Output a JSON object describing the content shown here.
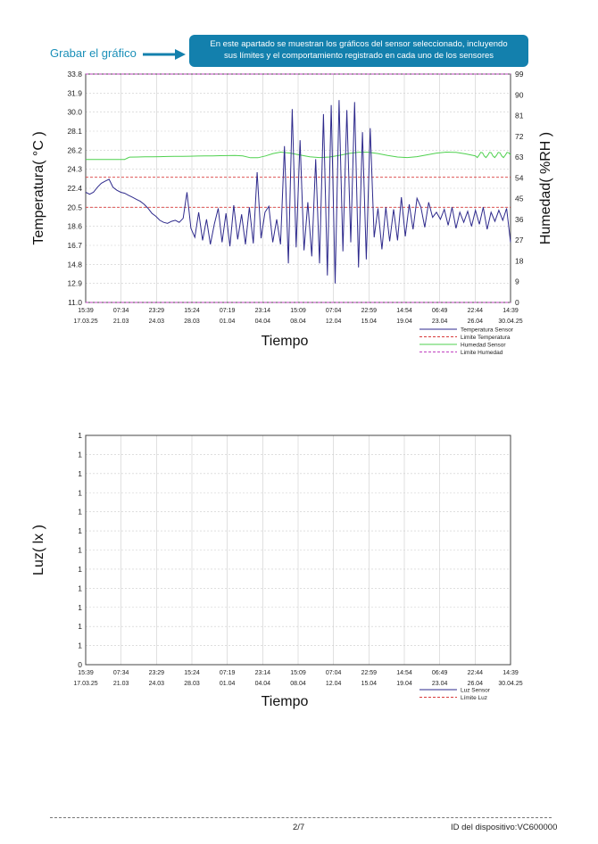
{
  "header": {
    "grabar_label": "Grabar el gráfico",
    "callout_line1": "En este apartado se muestran los gráficos del sensor seleccionado, incluyendo",
    "callout_line2": "sus límites y el comportamiento registrado en cada uno de los sensores"
  },
  "colors": {
    "accent": "#1380ad",
    "temperature_series": "#2e2a8c",
    "humidity_series": "#4fd14f",
    "temperature_limit": "#d93b3b",
    "humidity_limit": "#c040c0",
    "grid": "#cccccc"
  },
  "x_ticks": [
    {
      "time": "15:39",
      "date": "17.03.25"
    },
    {
      "time": "07:34",
      "date": "21.03"
    },
    {
      "time": "23:29",
      "date": "24.03"
    },
    {
      "time": "15:24",
      "date": "28.03"
    },
    {
      "time": "07:19",
      "date": "01.04"
    },
    {
      "time": "23:14",
      "date": "04.04"
    },
    {
      "time": "15:09",
      "date": "08.04"
    },
    {
      "time": "07:04",
      "date": "12.04"
    },
    {
      "time": "22:59",
      "date": "15.04"
    },
    {
      "time": "14:54",
      "date": "19.04"
    },
    {
      "time": "06:49",
      "date": "23.04"
    },
    {
      "time": "22:44",
      "date": "26.04"
    },
    {
      "time": "14:39",
      "date": "30.04.25"
    }
  ],
  "chart_data": [
    {
      "type": "line",
      "xlabel": "Tiempo",
      "ylabel": "Temperatura( °C )",
      "y2label": "Humedad( %RH )",
      "ylim": [
        11.0,
        33.8
      ],
      "y_ticks": [
        "33.8",
        "31.9",
        "30.0",
        "28.1",
        "26.2",
        "24.3",
        "22.4",
        "20.5",
        "18.6",
        "16.7",
        "14.8",
        "12.9",
        "11.0"
      ],
      "y2lim": [
        0,
        99
      ],
      "y2_ticks": [
        "99",
        "90",
        "81",
        "72",
        "63",
        "54",
        "45",
        "36",
        "27",
        "18",
        "9",
        "0"
      ],
      "grid": true,
      "legend_position": "bottom-right",
      "legend": [
        "Temperatura Sensor",
        "Limite Temperatura",
        "Humedad Sensor",
        "Limite Humedad"
      ],
      "limits": {
        "temperature": [
          20.5,
          23.5
        ],
        "humidity": [
          0,
          99
        ]
      },
      "series": [
        {
          "name": "Temperatura Sensor",
          "axis": "left",
          "x": [
            0,
            0.4,
            0.8,
            1.2,
            1.6,
            2.0,
            2.4,
            2.8,
            3.2,
            3.6,
            4.0,
            4.4,
            4.8,
            5.2,
            5.6,
            6.0,
            6.4,
            6.8,
            7.2,
            7.6,
            8.0,
            8.4,
            8.8,
            9.2,
            9.6,
            10.0,
            10.4,
            10.8,
            11.2,
            11.6,
            12.0,
            12.4,
            12.8,
            13.2,
            13.6,
            14.0,
            14.4,
            14.8,
            15.2,
            15.6,
            16.0,
            16.4,
            16.8,
            17.2,
            17.6,
            18.0,
            18.4,
            18.8,
            19.2,
            19.6,
            20.0,
            20.4,
            20.8,
            21.2,
            21.6,
            22.0,
            22.4,
            22.8,
            23.2,
            23.6,
            24.0,
            24.4,
            24.8,
            25.2,
            25.6,
            26.0,
            26.4,
            26.8,
            27.2,
            27.6,
            28.0,
            28.4,
            28.8,
            29.2,
            29.6,
            30.0,
            30.4,
            30.8,
            31.2,
            31.6,
            32.0,
            32.4,
            32.8,
            33.2,
            33.6,
            34.0,
            34.4,
            34.8,
            35.2,
            35.6,
            36.0,
            36.4,
            36.8,
            37.2,
            37.6,
            38.0,
            38.4,
            38.8,
            39.2,
            39.6,
            40.0,
            40.4,
            40.8,
            41.2,
            41.6,
            42.0,
            42.4,
            42.8,
            43.2,
            43.6
          ],
          "values": [
            22.0,
            21.8,
            22.0,
            22.5,
            22.9,
            23.1,
            23.3,
            22.5,
            22.2,
            22.0,
            21.9,
            21.7,
            21.5,
            21.3,
            21.1,
            20.8,
            20.4,
            19.9,
            19.6,
            19.2,
            19.0,
            18.9,
            19.1,
            19.2,
            19.0,
            19.4,
            22.0,
            18.4,
            17.5,
            20.0,
            17.2,
            19.3,
            16.8,
            18.8,
            20.4,
            17.0,
            19.9,
            16.6,
            20.7,
            17.3,
            19.8,
            16.8,
            20.5,
            16.9,
            24.0,
            17.4,
            20.0,
            20.6,
            17.0,
            19.3,
            16.8,
            26.6,
            14.9,
            30.3,
            16.5,
            27.2,
            16.2,
            21.0,
            15.6,
            25.3,
            14.9,
            29.8,
            13.7,
            30.7,
            12.9,
            31.2,
            16.1,
            30.2,
            17.0,
            31.0,
            14.5,
            28.0,
            15.3,
            28.4,
            17.5,
            20.4,
            16.3,
            20.5,
            17.1,
            20.3,
            17.2,
            21.5,
            17.6,
            20.8,
            18.3,
            21.4,
            20.5,
            18.5,
            21.0,
            19.5,
            20.0,
            19.3,
            20.3,
            18.7,
            20.5,
            18.4,
            20.0,
            19.0,
            20.1,
            18.6,
            20.2,
            18.8,
            20.5,
            18.3,
            20.0,
            19.1,
            20.2,
            19.2,
            20.4,
            17.0
          ]
        },
        {
          "name": "Humedad Sensor",
          "axis": "right",
          "x": [
            0,
            4,
            4.5,
            20,
            40,
            43.6
          ],
          "values": [
            62,
            62,
            63,
            64,
            64,
            64
          ]
        }
      ]
    },
    {
      "type": "line",
      "xlabel": "Tiempo",
      "ylabel": "Luz( lx )",
      "y_ticks": [
        "1",
        "1",
        "1",
        "1",
        "1",
        "1",
        "1",
        "1",
        "1",
        "1",
        "1",
        "1",
        "0"
      ],
      "grid": true,
      "legend_position": "bottom-right",
      "legend": [
        "Luz Sensor",
        "Límite Luz"
      ],
      "series": []
    }
  ],
  "footer": {
    "page": "2/7",
    "device": "ID del dispositivo:VC600000"
  }
}
